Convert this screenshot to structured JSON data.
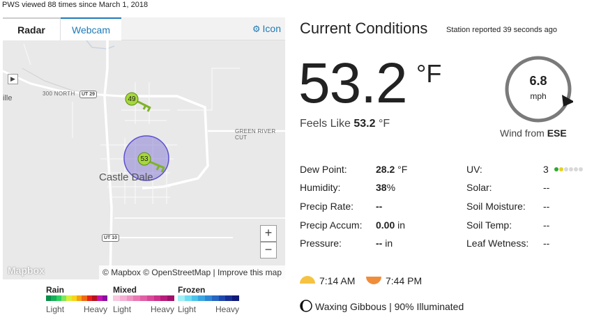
{
  "header": {
    "pws_views": "PWS viewed 88 times since March 1, 2018"
  },
  "map_widget": {
    "tabs": [
      {
        "label": "Radar"
      },
      {
        "label": "Webcam"
      }
    ],
    "icon_link": "Icon",
    "town": "Castle Dale",
    "edge_label": "ille",
    "roads": {
      "north": "300 NORTH",
      "ut29": "UT 29",
      "green_river": "GREEN RIVER CUT",
      "ut10": "UT 10"
    },
    "stations": [
      {
        "value": "49"
      },
      {
        "value": "53"
      }
    ],
    "zoom_in": "+",
    "zoom_out": "−",
    "logo": "Mapbox",
    "attribution": {
      "mapbox": "© Mapbox",
      "osm": "© OpenStreetMap",
      "separator": "|",
      "improve": "Improve this map"
    }
  },
  "legend": {
    "groups": [
      {
        "title": "Rain",
        "light": "Light",
        "heavy": "Heavy",
        "colors": [
          "#0a8f4a",
          "#16b05a",
          "#2fcf60",
          "#7ee65f",
          "#d7ef3a",
          "#f7d51c",
          "#f4a414",
          "#ef6a14",
          "#e5211b",
          "#b8121c",
          "#c012b0",
          "#8b0fa0"
        ]
      },
      {
        "title": "Mixed",
        "light": "Light",
        "heavy": "Heavy",
        "colors": [
          "#f7c8e0",
          "#f3b0d2",
          "#ee96c3",
          "#e87ab3",
          "#e060a6",
          "#d84898",
          "#cc308a",
          "#b81c7a",
          "#a0106a"
        ]
      },
      {
        "title": "Frozen",
        "light": "Light",
        "heavy": "Heavy",
        "colors": [
          "#9ff0f6",
          "#6fdcf0",
          "#4cc3ea",
          "#3aa6e0",
          "#2e86d4",
          "#2766c2",
          "#1f48ad",
          "#182e94",
          "#101a78"
        ]
      }
    ]
  },
  "current": {
    "title": "Current Conditions",
    "station_reported": "Station reported 39 seconds ago",
    "temperature": "53.2",
    "temperature_unit": "°F",
    "feels_like_label": "Feels Like",
    "feels_like_value": "53.2",
    "feels_like_unit": "°F",
    "wind": {
      "speed": "6.8",
      "unit": "mph",
      "from_label": "Wind from",
      "direction": "ESE"
    },
    "left_rows": [
      {
        "label": "Dew Point:",
        "value": "28.2",
        "unit": " °F"
      },
      {
        "label": "Humidity:",
        "value": "38",
        "unit": "%"
      },
      {
        "label": "Precip Rate:",
        "value": "--",
        "unit": ""
      },
      {
        "label": "Precip Accum:",
        "value": "0.00",
        "unit": " in"
      },
      {
        "label": "Pressure:",
        "value": "--",
        "unit": " in"
      }
    ],
    "right_rows": [
      {
        "label": "UV:",
        "value": "3"
      },
      {
        "label": "Solar:",
        "value": "--"
      },
      {
        "label": "Soil Moisture:",
        "value": "--"
      },
      {
        "label": "Soil Temp:",
        "value": "--"
      },
      {
        "label": "Leaf Wetness:",
        "value": "--"
      }
    ],
    "uv_level": 3,
    "uv_max_dots": 6,
    "sunrise": "7:14 AM",
    "sunset": "7:44 PM",
    "moon": "Waxing Gibbous | 90% Illuminated"
  },
  "colors": {
    "accent_blue": "#1e7ab8",
    "sunrise": "#f5c242",
    "sunset": "#ef8d3a",
    "station_marker": "#9bd43a",
    "radar_circle": "#8b7fd6"
  }
}
